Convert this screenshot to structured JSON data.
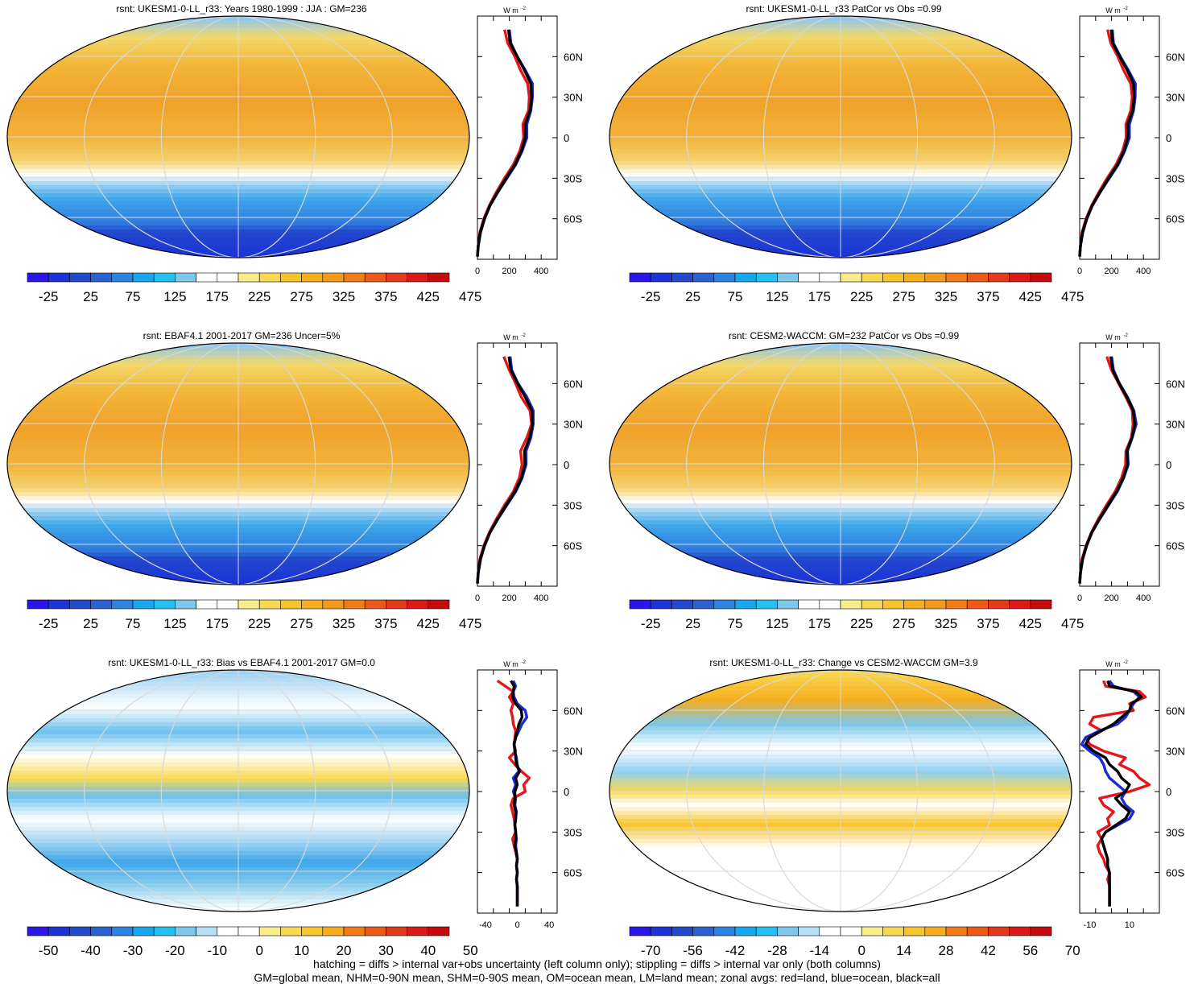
{
  "figure": {
    "footer_line1": "hatching = diffs > internal var+obs uncertainty (left column only); stippling = diffs > internal var only (both columns)",
    "footer_line2": "GM=global mean, NHM=0-90N mean, SHM=0-90S mean, OM=ocean mean, LM=land mean; zonal avgs: red=land, blue=ocean, black=all"
  },
  "colors": {
    "land": "#e8141c",
    "ocean": "#1a2bd6",
    "all": "#000000"
  },
  "chart_data": [
    {
      "type": "heatmap",
      "title": "rsnt: UKESM1-0-LL_r33: Years 1980-1999 : JJA : GM=236",
      "colorbar_labels": [
        "-25",
        "25",
        "75",
        "125",
        "175",
        "225",
        "275",
        "325",
        "375",
        "425",
        "475"
      ],
      "zonal": {
        "unit": "W m",
        "unit_sup": "-2",
        "xticks": [
          "0",
          "200",
          "400"
        ],
        "xlim": [
          0,
          500
        ],
        "lat_labels": [
          "60N",
          "30N",
          "0",
          "30S",
          "60S"
        ],
        "lat": [
          80,
          70,
          60,
          50,
          40,
          30,
          20,
          10,
          0,
          -10,
          -20,
          -30,
          -40,
          -50,
          -60,
          -70,
          -80,
          -88
        ],
        "series": [
          {
            "name": "land",
            "values": [
              170,
              190,
              235,
              270,
              315,
              325,
              320,
              285,
              290,
              265,
              225,
              170,
              120,
              75,
              40,
              15,
              5,
              0
            ]
          },
          {
            "name": "ocean",
            "values": [
              200,
              210,
              250,
              300,
              345,
              345,
              335,
              310,
              310,
              280,
              240,
              185,
              130,
              80,
              45,
              20,
              5,
              0
            ]
          },
          {
            "name": "all",
            "values": [
              195,
              205,
              250,
              295,
              335,
              340,
              330,
              300,
              300,
              275,
              235,
              180,
              128,
              80,
              44,
              18,
              5,
              0
            ]
          }
        ]
      }
    },
    {
      "type": "heatmap",
      "title": "rsnt: UKESM1-0-LL_r33 PatCor vs Obs =0.99",
      "colorbar_labels": [
        "-25",
        "25",
        "75",
        "125",
        "175",
        "225",
        "275",
        "325",
        "375",
        "425",
        "475"
      ],
      "zonal": {
        "unit": "W m",
        "unit_sup": "-2",
        "xticks": [
          "0",
          "200",
          "400"
        ],
        "xlim": [
          0,
          500
        ],
        "lat_labels": [
          "60N",
          "30N",
          "0",
          "30S",
          "60S"
        ],
        "lat": [
          80,
          70,
          60,
          50,
          40,
          30,
          20,
          10,
          0,
          -10,
          -20,
          -30,
          -40,
          -50,
          -60,
          -70,
          -80,
          -88
        ],
        "series": [
          {
            "name": "land",
            "values": [
              175,
              195,
              240,
              275,
              320,
              330,
              320,
              290,
              292,
              268,
              228,
              172,
              122,
              76,
              40,
              15,
              5,
              0
            ]
          },
          {
            "name": "ocean",
            "values": [
              205,
              212,
              255,
              305,
              350,
              348,
              338,
              312,
              312,
              282,
              242,
              186,
              131,
              81,
              45,
              20,
              5,
              0
            ]
          },
          {
            "name": "all",
            "values": [
              198,
              207,
              252,
              298,
              338,
              342,
              332,
              302,
              302,
              277,
              237,
              182,
              129,
              80,
              44,
              18,
              5,
              0
            ]
          }
        ]
      }
    },
    {
      "type": "heatmap",
      "title": "rsnt: EBAF4.1 2001-2017 GM=236 Uncer=5%",
      "colorbar_labels": [
        "-25",
        "25",
        "75",
        "125",
        "175",
        "225",
        "275",
        "325",
        "375",
        "425",
        "475"
      ],
      "zonal": {
        "unit": "W m",
        "unit_sup": "-2",
        "xticks": [
          "0",
          "200",
          "400"
        ],
        "xlim": [
          0,
          500
        ],
        "lat_labels": [
          "60N",
          "30N",
          "0",
          "30S",
          "60S"
        ],
        "lat": [
          80,
          70,
          60,
          50,
          40,
          30,
          20,
          10,
          0,
          -10,
          -20,
          -30,
          -40,
          -50,
          -60,
          -70,
          -80,
          -88
        ],
        "series": [
          {
            "name": "land",
            "values": [
              165,
              200,
              240,
              275,
              330,
              340,
              310,
              270,
              280,
              262,
              225,
              170,
              120,
              75,
              40,
              15,
              5,
              0
            ]
          },
          {
            "name": "ocean",
            "values": [
              205,
              215,
              255,
              310,
              350,
              350,
              335,
              305,
              305,
              280,
              240,
              185,
              130,
              80,
              45,
              20,
              5,
              0
            ]
          },
          {
            "name": "all",
            "values": [
              198,
              210,
              252,
              300,
              342,
              345,
              328,
              295,
              298,
              275,
              235,
              180,
              128,
              80,
              44,
              18,
              5,
              0
            ]
          }
        ]
      }
    },
    {
      "type": "heatmap",
      "title": "rsnt: CESM2-WACCM: GM=232 PatCor vs Obs =0.99",
      "colorbar_labels": [
        "-25",
        "25",
        "75",
        "125",
        "175",
        "225",
        "275",
        "325",
        "375",
        "425",
        "475"
      ],
      "zonal": {
        "unit": "W m",
        "unit_sup": "-2",
        "xticks": [
          "0",
          "200",
          "400"
        ],
        "xlim": [
          0,
          500
        ],
        "lat_labels": [
          "60N",
          "30N",
          "0",
          "30S",
          "60S"
        ],
        "lat": [
          80,
          70,
          60,
          50,
          40,
          30,
          20,
          10,
          0,
          -10,
          -20,
          -30,
          -40,
          -50,
          -60,
          -70,
          -80,
          -88
        ],
        "series": [
          {
            "name": "land",
            "values": [
              170,
              200,
              245,
              290,
              330,
              335,
              325,
              290,
              288,
              262,
              222,
              168,
              118,
              74,
              40,
              15,
              5,
              0
            ]
          },
          {
            "name": "ocean",
            "values": [
              200,
              212,
              250,
              300,
              340,
              355,
              330,
              300,
              305,
              276,
              236,
              182,
              128,
              78,
              44,
              19,
              5,
              0
            ]
          },
          {
            "name": "all",
            "values": [
              195,
              207,
              248,
              296,
              336,
              346,
              328,
              297,
              300,
              272,
              232,
              178,
              126,
              77,
              43,
              18,
              5,
              0
            ]
          }
        ]
      }
    },
    {
      "type": "heatmap",
      "title": "rsnt: UKESM1-0-LL_r33: Bias vs EBAF4.1 2001-2017 GM=0.0",
      "colorbar_labels": [
        "-50",
        "-40",
        "-30",
        "-20",
        "-10",
        "0",
        "10",
        "20",
        "30",
        "40",
        "50"
      ],
      "zonal": {
        "unit": "W m",
        "unit_sup": "-2",
        "xticks": [
          "-40",
          "0",
          "40"
        ],
        "xlim": [
          -50,
          50
        ],
        "lat_labels": [
          "60N",
          "30N",
          "0",
          "30S",
          "60S"
        ],
        "lat": [
          82,
          78,
          74,
          70,
          65,
          60,
          55,
          50,
          45,
          40,
          35,
          30,
          25,
          20,
          15,
          10,
          5,
          0,
          -5,
          -10,
          -15,
          -20,
          -25,
          -30,
          -35,
          -40,
          -45,
          -50,
          -55,
          -60,
          -65,
          -70,
          -75,
          -80,
          -85
        ],
        "series": [
          {
            "name": "land",
            "values": [
              -25,
              -15,
              -5,
              -10,
              -5,
              -8,
              -6,
              -5,
              -2,
              -3,
              -4,
              -2,
              -10,
              -3,
              5,
              15,
              8,
              10,
              -5,
              -8,
              -6,
              -4,
              -3,
              -2,
              -6,
              -4,
              -2,
              0,
              -1,
              0,
              -1,
              0,
              0,
              0,
              0
            ]
          },
          {
            "name": "ocean",
            "values": [
              -5,
              -2,
              -5,
              -4,
              0,
              10,
              12,
              6,
              2,
              -2,
              -4,
              -3,
              -1,
              0,
              2,
              -5,
              -2,
              -5,
              -2,
              -3,
              -1,
              -2,
              -3,
              -2,
              -1,
              -2,
              -1,
              0,
              -1,
              0,
              -1,
              0,
              0,
              0,
              0
            ]
          },
          {
            "name": "all",
            "values": [
              -8,
              -4,
              -5,
              -6,
              -2,
              5,
              6,
              2,
              0,
              -2,
              -4,
              -3,
              -2,
              -1,
              3,
              -2,
              0,
              -3,
              -3,
              -4,
              -2,
              -2,
              -3,
              -2,
              -2,
              -3,
              -1,
              0,
              -1,
              0,
              -1,
              0,
              0,
              0,
              0
            ]
          }
        ]
      }
    },
    {
      "type": "heatmap",
      "title": "rsnt: UKESM1-0-LL_r33: Change vs CESM2-WACCM GM=3.9",
      "colorbar_labels": [
        "-70",
        "-56",
        "-42",
        "-28",
        "-14",
        "0",
        "14",
        "28",
        "42",
        "56",
        "70"
      ],
      "zonal": {
        "unit": "W m",
        "unit_sup": "-2",
        "xticks": [
          "-10",
          "10"
        ],
        "xlim": [
          -15,
          25
        ],
        "lat_labels": [
          "60N",
          "30N",
          "0",
          "30S",
          "60S"
        ],
        "lat": [
          82,
          78,
          74,
          70,
          65,
          60,
          55,
          50,
          45,
          40,
          35,
          30,
          25,
          20,
          15,
          10,
          5,
          0,
          -5,
          -10,
          -15,
          -20,
          -25,
          -30,
          -35,
          -40,
          -45,
          -50,
          -55,
          -60,
          -65,
          -70,
          -75,
          -80,
          -85
        ],
        "series": [
          {
            "name": "land",
            "values": [
              -3,
              -2,
              15,
              18,
              10,
              12,
              -8,
              -10,
              -4,
              -12,
              -10,
              -3,
              8,
              5,
              12,
              15,
              20,
              10,
              -5,
              -3,
              2,
              -1,
              0,
              -6,
              -4,
              -6,
              -5,
              -3,
              -2,
              0,
              -1,
              0,
              0,
              0,
              0
            ]
          },
          {
            "name": "ocean",
            "values": [
              0,
              2,
              12,
              15,
              12,
              10,
              8,
              4,
              -5,
              -12,
              -14,
              -10,
              -5,
              -3,
              -2,
              0,
              4,
              8,
              6,
              8,
              12,
              10,
              4,
              -2,
              -4,
              -3,
              -2,
              -1,
              -1,
              0,
              0,
              0,
              0,
              0,
              0
            ]
          },
          {
            "name": "all",
            "values": [
              -1,
              0,
              13,
              16,
              11,
              10,
              6,
              2,
              -4,
              -10,
              -12,
              -8,
              -2,
              0,
              4,
              6,
              10,
              8,
              3,
              6,
              10,
              8,
              3,
              -2,
              -4,
              -3,
              -2,
              -1,
              -1,
              0,
              0,
              0,
              0,
              0,
              0
            ]
          }
        ]
      }
    }
  ]
}
